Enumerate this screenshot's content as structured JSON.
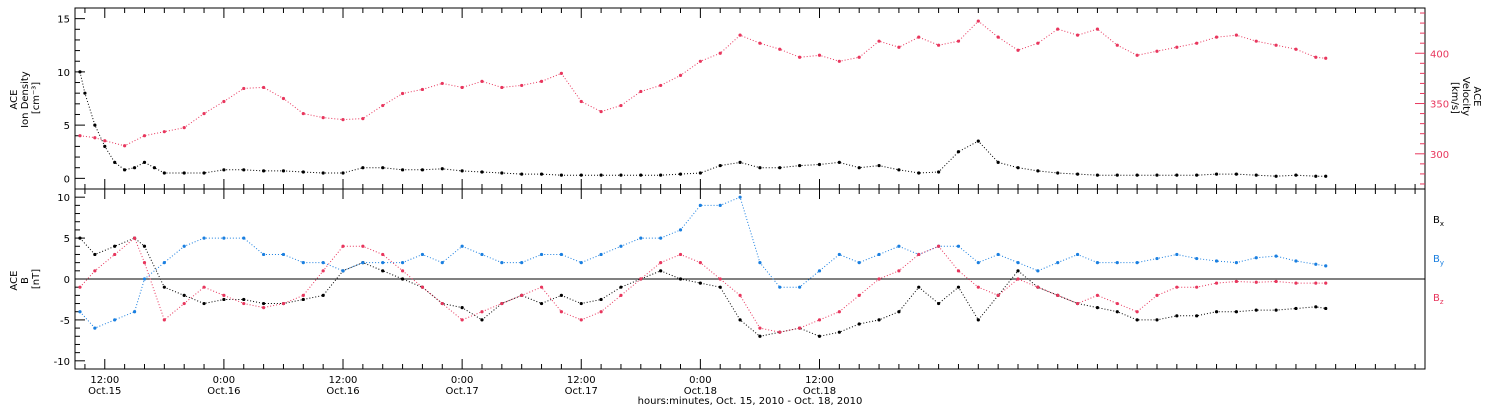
{
  "chart_data": [
    {
      "type": "scatter",
      "panel": "top",
      "ylabel_left": [
        "ACE",
        "Ion Density",
        "[cm⁻³]"
      ],
      "ylabel_right": [
        "ACE",
        "Velocity",
        "[km/s]"
      ],
      "ylim_left": [
        -1,
        16
      ],
      "yticks_left": [
        0,
        5,
        10,
        15
      ],
      "ylim_right": [
        265,
        445
      ],
      "yticks_right": [
        300,
        350,
        400
      ],
      "right_axis_color": "#e8365d",
      "grid": false,
      "series": [
        {
          "axis": "left",
          "color": "#000000",
          "x": [
            9.5,
            10,
            11,
            12,
            13,
            14,
            15,
            16,
            17,
            18,
            20,
            22,
            24,
            26,
            28,
            30,
            32,
            34,
            36,
            38,
            40,
            42,
            44,
            46,
            48,
            50,
            52,
            54,
            56,
            58,
            60,
            62,
            64,
            66,
            68,
            70,
            72,
            74,
            76,
            78,
            80,
            82,
            84,
            86,
            88,
            90,
            92,
            94,
            96,
            98,
            100,
            102,
            104,
            106,
            108,
            110,
            112,
            114,
            116,
            118,
            120,
            122,
            124,
            126,
            128,
            130,
            132,
            134,
            135
          ],
          "y": [
            10,
            8,
            5,
            3,
            1.5,
            0.8,
            1,
            1.5,
            1,
            0.5,
            0.5,
            0.5,
            0.8,
            0.8,
            0.7,
            0.7,
            0.6,
            0.5,
            0.5,
            1,
            1,
            0.8,
            0.8,
            0.9,
            0.7,
            0.6,
            0.5,
            0.4,
            0.4,
            0.3,
            0.3,
            0.3,
            0.3,
            0.3,
            0.3,
            0.4,
            0.5,
            1.2,
            1.5,
            1,
            1,
            1.2,
            1.3,
            1.5,
            1,
            1.2,
            0.8,
            0.5,
            0.6,
            2.5,
            3.5,
            1.5,
            1,
            0.7,
            0.5,
            0.4,
            0.3,
            0.3,
            0.3,
            0.3,
            0.3,
            0.3,
            0.4,
            0.4,
            0.3,
            0.2,
            0.3,
            0.2,
            0.2
          ]
        },
        {
          "axis": "right",
          "color": "#e8365d",
          "x": [
            9.5,
            11,
            12,
            14,
            16,
            18,
            20,
            22,
            24,
            26,
            28,
            30,
            32,
            34,
            36,
            38,
            40,
            42,
            44,
            46,
            48,
            50,
            52,
            54,
            56,
            58,
            60,
            62,
            64,
            66,
            68,
            70,
            72,
            74,
            76,
            78,
            80,
            82,
            84,
            86,
            88,
            90,
            92,
            94,
            96,
            98,
            100,
            102,
            104,
            106,
            108,
            110,
            112,
            114,
            116,
            118,
            120,
            122,
            124,
            126,
            128,
            130,
            132,
            134,
            135
          ],
          "y": [
            318,
            316,
            313,
            308,
            318,
            322,
            326,
            340,
            352,
            365,
            366,
            355,
            340,
            336,
            334,
            335,
            348,
            360,
            364,
            370,
            366,
            372,
            366,
            368,
            372,
            380,
            352,
            342,
            348,
            362,
            368,
            378,
            392,
            400,
            418,
            410,
            404,
            396,
            398,
            392,
            396,
            412,
            406,
            416,
            408,
            412,
            432,
            416,
            403,
            410,
            424,
            418,
            424,
            408,
            398,
            402,
            406,
            410,
            416,
            418,
            412,
            408,
            404,
            396,
            395
          ]
        }
      ]
    },
    {
      "type": "scatter",
      "panel": "bottom",
      "ylabel_left": [
        "ACE",
        "B",
        "[nT]"
      ],
      "ylim": [
        -11,
        11
      ],
      "yticks": [
        -10,
        -5,
        0,
        5,
        10
      ],
      "zero_line": true,
      "grid": false,
      "legend": "right",
      "series": [
        {
          "name": "B",
          "sub": "x",
          "color": "#000000",
          "x": [
            9.5,
            11,
            13,
            15,
            16,
            18,
            20,
            22,
            24,
            26,
            28,
            30,
            32,
            34,
            36,
            38,
            40,
            42,
            44,
            46,
            48,
            50,
            52,
            54,
            56,
            58,
            60,
            62,
            64,
            66,
            68,
            70,
            72,
            74,
            76,
            78,
            80,
            82,
            84,
            86,
            88,
            90,
            92,
            94,
            96,
            98,
            100,
            102,
            104,
            106,
            108,
            110,
            112,
            114,
            116,
            118,
            120,
            122,
            124,
            126,
            128,
            130,
            132,
            134,
            135
          ],
          "y": [
            5,
            3,
            4,
            5,
            4,
            -1,
            -2,
            -3,
            -2.5,
            -2.5,
            -3,
            -3,
            -2.5,
            -2,
            1,
            2,
            1,
            0,
            -1,
            -3,
            -3.5,
            -5,
            -3,
            -2,
            -3,
            -2,
            -3,
            -2.5,
            -1,
            0,
            1,
            0,
            -0.5,
            -1,
            -5,
            -7,
            -6.5,
            -6,
            -7,
            -6.5,
            -5.5,
            -5,
            -4,
            -1,
            -3,
            -1,
            -5,
            -2,
            1,
            -1,
            -2,
            -3,
            -3.5,
            -4,
            -5,
            -5,
            -4.5,
            -4.5,
            -4,
            -4,
            -3.8,
            -3.8,
            -3.6,
            -3.4,
            -3.6
          ]
        },
        {
          "name": "B",
          "sub": "y",
          "color": "#1a7fe0",
          "x": [
            9.5,
            11,
            13,
            15,
            16,
            18,
            20,
            22,
            24,
            26,
            28,
            30,
            32,
            34,
            36,
            38,
            40,
            42,
            44,
            46,
            48,
            50,
            52,
            54,
            56,
            58,
            60,
            62,
            64,
            66,
            68,
            70,
            72,
            74,
            76,
            78,
            80,
            82,
            84,
            86,
            88,
            90,
            92,
            94,
            96,
            98,
            100,
            102,
            104,
            106,
            108,
            110,
            112,
            114,
            116,
            118,
            120,
            122,
            124,
            126,
            128,
            130,
            132,
            134,
            135
          ],
          "y": [
            -4,
            -6,
            -5,
            -4,
            0,
            2,
            4,
            5,
            5,
            5,
            3,
            3,
            2,
            2,
            1,
            2,
            2,
            2,
            3,
            2,
            4,
            3,
            2,
            2,
            3,
            3,
            2,
            3,
            4,
            5,
            5,
            6,
            9,
            9,
            10,
            2,
            -1,
            -1,
            1,
            3,
            2,
            3,
            4,
            3,
            4,
            4,
            2,
            3,
            2,
            1,
            2,
            3,
            2,
            2,
            2,
            2.5,
            3,
            2.5,
            2.2,
            2,
            2.6,
            2.8,
            2.2,
            1.8,
            1.6
          ]
        },
        {
          "name": "B",
          "sub": "z",
          "color": "#e8365d",
          "x": [
            9.5,
            11,
            13,
            15,
            16,
            18,
            20,
            22,
            24,
            26,
            28,
            30,
            32,
            34,
            36,
            38,
            40,
            42,
            44,
            46,
            48,
            50,
            52,
            54,
            56,
            58,
            60,
            62,
            64,
            66,
            68,
            70,
            72,
            74,
            76,
            78,
            80,
            82,
            84,
            86,
            88,
            90,
            92,
            94,
            96,
            98,
            100,
            102,
            104,
            106,
            108,
            110,
            112,
            114,
            116,
            118,
            120,
            122,
            124,
            126,
            128,
            130,
            132,
            134,
            135
          ],
          "y": [
            -1,
            1,
            3,
            5,
            2,
            -5,
            -3,
            -1,
            -2,
            -3,
            -3.5,
            -3,
            -2,
            1,
            4,
            4,
            3,
            1,
            -1,
            -3,
            -5,
            -4,
            -3,
            -2,
            -1,
            -4,
            -5,
            -4,
            -2,
            0,
            2,
            3,
            2,
            0,
            -2,
            -6,
            -6.5,
            -6,
            -5,
            -4,
            -2,
            0,
            1,
            3,
            4,
            1,
            -1,
            -2,
            0,
            -1,
            -2,
            -3,
            -2,
            -3,
            -4,
            -2,
            -1,
            -1,
            -0.5,
            -0.3,
            -0.4,
            -0.3,
            -0.5,
            -0.5,
            -0.5
          ]
        }
      ]
    }
  ],
  "x_axis": {
    "range": [
      9,
      145
    ],
    "ticks": [
      {
        "x": 12,
        "line1": "12:00",
        "line2": "Oct.15"
      },
      {
        "x": 24,
        "line1": "0:00",
        "line2": "Oct.16"
      },
      {
        "x": 36,
        "line1": "12:00",
        "line2": "Oct.16"
      },
      {
        "x": 48,
        "line1": "0:00",
        "line2": "Oct.17"
      },
      {
        "x": 60,
        "line1": "12:00",
        "line2": "Oct.17"
      },
      {
        "x": 72,
        "line1": "0:00",
        "line2": "Oct.18"
      },
      {
        "x": 84,
        "line1": "12:00",
        "line2": "Oct.18"
      }
    ],
    "title": "hours:minutes, Oct. 15, 2010 - Oct. 18, 2010"
  }
}
